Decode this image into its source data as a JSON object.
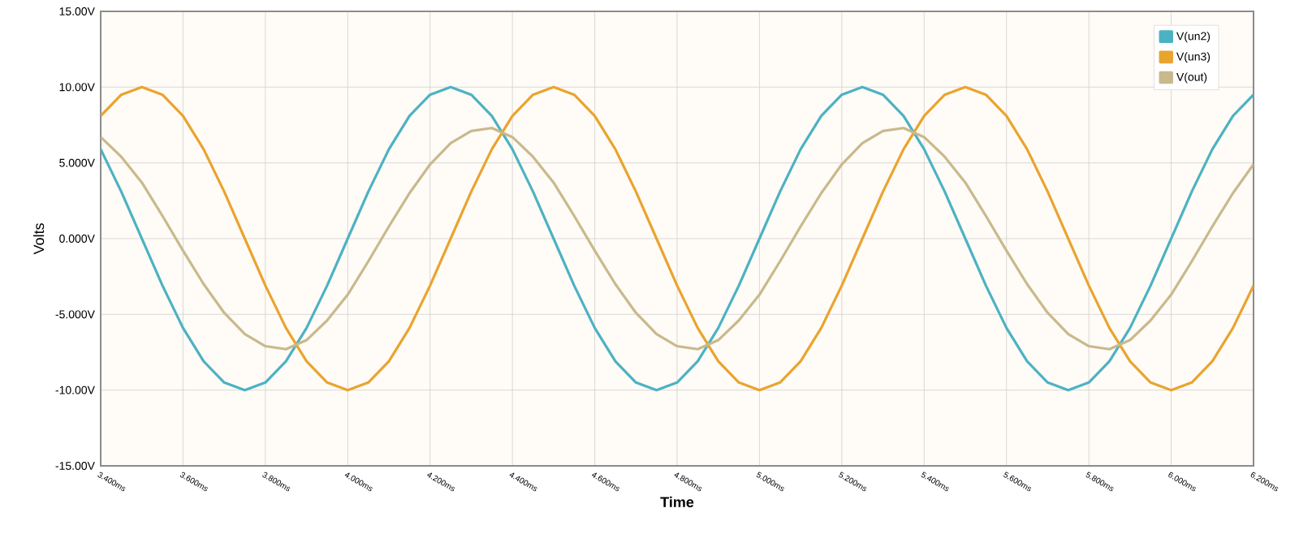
{
  "chart_data": {
    "type": "line",
    "xlabel": "Time",
    "ylabel": "Volts",
    "x": [
      3.4,
      3.45,
      3.5,
      3.55,
      3.6,
      3.65,
      3.7,
      3.75,
      3.8,
      3.85,
      3.9,
      3.95,
      4.0,
      4.05,
      4.1,
      4.15,
      4.2,
      4.25,
      4.3,
      4.35,
      4.4,
      4.45,
      4.5,
      4.55,
      4.6,
      4.65,
      4.7,
      4.75,
      4.8,
      4.85,
      4.9,
      4.95,
      5.0,
      5.05,
      5.1,
      5.15,
      5.2,
      5.25,
      5.3,
      5.35,
      5.4,
      5.45,
      5.5,
      5.55,
      5.6,
      5.65,
      5.7,
      5.75,
      5.8,
      5.85,
      5.9,
      5.95,
      6.0,
      6.05,
      6.1,
      6.15,
      6.2
    ],
    "series": [
      {
        "name": "V(un2)",
        "color": "#4cb2c3",
        "values": [
          5.9,
          3.1,
          0,
          -3.1,
          -5.9,
          -8.1,
          -9.5,
          -10,
          -9.5,
          -8.1,
          -5.9,
          -3.1,
          0,
          3.1,
          5.9,
          8.1,
          9.5,
          10,
          9.5,
          8.1,
          5.9,
          3.1,
          0,
          -3.1,
          -5.9,
          -8.1,
          -9.5,
          -10,
          -9.5,
          -8.1,
          -5.9,
          -3.1,
          0,
          3.1,
          5.9,
          8.1,
          9.5,
          10,
          9.5,
          8.1,
          5.9,
          3.1,
          0,
          -3.1,
          -5.9,
          -8.1,
          -9.5,
          -10,
          -9.5,
          -8.1,
          -5.9,
          -3.1,
          0,
          3.1,
          5.9,
          8.1,
          9.5
        ]
      },
      {
        "name": "V(un3)",
        "color": "#e9a42f",
        "values": [
          8.1,
          9.5,
          10,
          9.5,
          8.1,
          5.9,
          3.1,
          0,
          -3.1,
          -5.9,
          -8.1,
          -9.5,
          -10,
          -9.5,
          -8.1,
          -5.9,
          -3.1,
          0,
          3.1,
          5.9,
          8.1,
          9.5,
          10,
          9.5,
          8.1,
          5.9,
          3.1,
          0,
          -3.1,
          -5.9,
          -8.1,
          -9.5,
          -10,
          -9.5,
          -8.1,
          -5.9,
          -3.1,
          0,
          3.1,
          5.9,
          8.1,
          9.5,
          10,
          9.5,
          8.1,
          5.9,
          3.1,
          0,
          -3.1,
          -5.9,
          -8.1,
          -9.5,
          -10,
          -9.5,
          -8.1,
          -5.9,
          -3.1
        ]
      },
      {
        "name": "V(out)",
        "color": "#c9b98c",
        "values": [
          6.7,
          5.4,
          3.7,
          1.5,
          -0.8,
          -3.0,
          -4.9,
          -6.3,
          -7.1,
          -7.3,
          -6.7,
          -5.4,
          -3.7,
          -1.5,
          0.8,
          3.0,
          4.9,
          6.3,
          7.1,
          7.3,
          6.7,
          5.4,
          3.7,
          1.5,
          -0.8,
          -3.0,
          -4.9,
          -6.3,
          -7.1,
          -7.3,
          -6.7,
          -5.4,
          -3.7,
          -1.5,
          0.8,
          3.0,
          4.9,
          6.3,
          7.1,
          7.3,
          6.7,
          5.4,
          3.7,
          1.5,
          -0.8,
          -3.0,
          -4.9,
          -6.3,
          -7.1,
          -7.3,
          -6.7,
          -5.4,
          -3.7,
          -1.5,
          0.8,
          3.0,
          4.9
        ]
      }
    ],
    "xlim": [
      3.4,
      6.2
    ],
    "xticks": [
      {
        "value": 3.4,
        "label": "3.400ms"
      },
      {
        "value": 3.6,
        "label": "3.600ms"
      },
      {
        "value": 3.8,
        "label": "3.800ms"
      },
      {
        "value": 4.0,
        "label": "4.000ms"
      },
      {
        "value": 4.2,
        "label": "4.200ms"
      },
      {
        "value": 4.4,
        "label": "4.400ms"
      },
      {
        "value": 4.6,
        "label": "4.600ms"
      },
      {
        "value": 4.8,
        "label": "4.800ms"
      },
      {
        "value": 5.0,
        "label": "5.000ms"
      },
      {
        "value": 5.2,
        "label": "5.200ms"
      },
      {
        "value": 5.4,
        "label": "5.400ms"
      },
      {
        "value": 5.6,
        "label": "5.600ms"
      },
      {
        "value": 5.8,
        "label": "5.800ms"
      },
      {
        "value": 6.0,
        "label": "6.000ms"
      },
      {
        "value": 6.2,
        "label": "6.200ms"
      }
    ],
    "ylim": [
      -15,
      15
    ],
    "yticks": [
      {
        "value": -15,
        "label": "-15.00V"
      },
      {
        "value": -10,
        "label": "-10.00V"
      },
      {
        "value": -5,
        "label": "-5.000V"
      },
      {
        "value": 0,
        "label": "0.000V"
      },
      {
        "value": 5,
        "label": "5.000V"
      },
      {
        "value": 10,
        "label": "10.00V"
      },
      {
        "value": 15,
        "label": "15.00V"
      }
    ],
    "grid": true,
    "legend": "top right",
    "marker": "none",
    "line_style": "solid"
  }
}
